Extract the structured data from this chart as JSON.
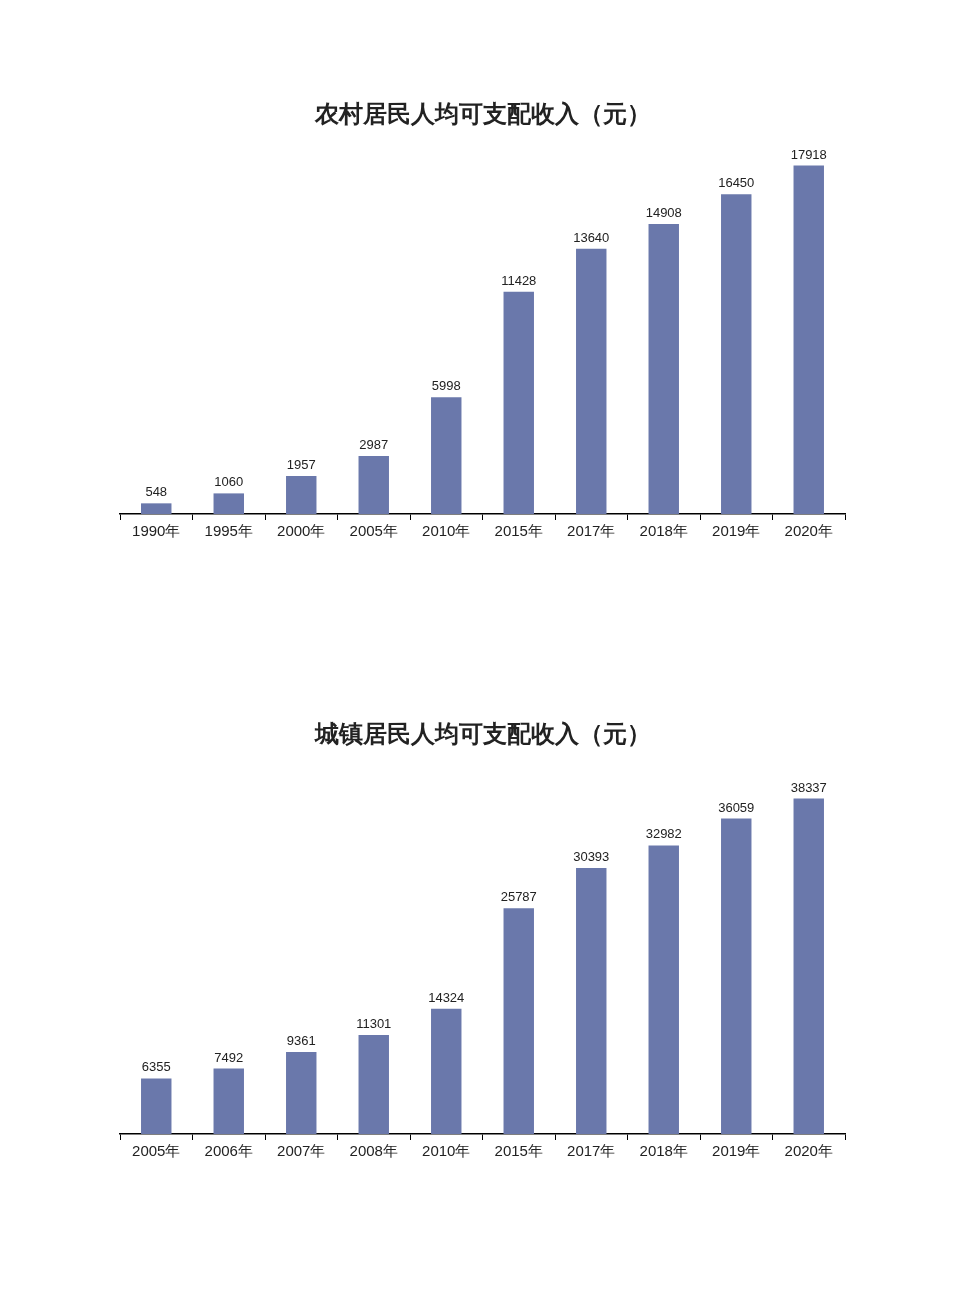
{
  "chart_data": [
    {
      "type": "bar",
      "title": "农村居民人均可支配收入（元）",
      "categories": [
        "1990年",
        "1995年",
        "2000年",
        "2005年",
        "2010年",
        "2015年",
        "2017年",
        "2018年",
        "2019年",
        "2020年"
      ],
      "values": [
        548,
        1060,
        1957,
        2987,
        5998,
        11428,
        13640,
        14908,
        16450,
        17918
      ],
      "color": "#6a78ab",
      "data_labels": true,
      "tick_labels": "x"
    },
    {
      "type": "bar",
      "title": "城镇居民人均可支配收入（元）",
      "categories": [
        "2005年",
        "2006年",
        "2007年",
        "2008年",
        "2010年",
        "2015年",
        "2017年",
        "2018年",
        "2019年",
        "2020年"
      ],
      "values": [
        6355,
        7492,
        9361,
        11301,
        14324,
        25787,
        30393,
        32982,
        36059,
        38337
      ],
      "color": "#6a78ab",
      "data_labels": true,
      "tick_labels": "x"
    }
  ]
}
